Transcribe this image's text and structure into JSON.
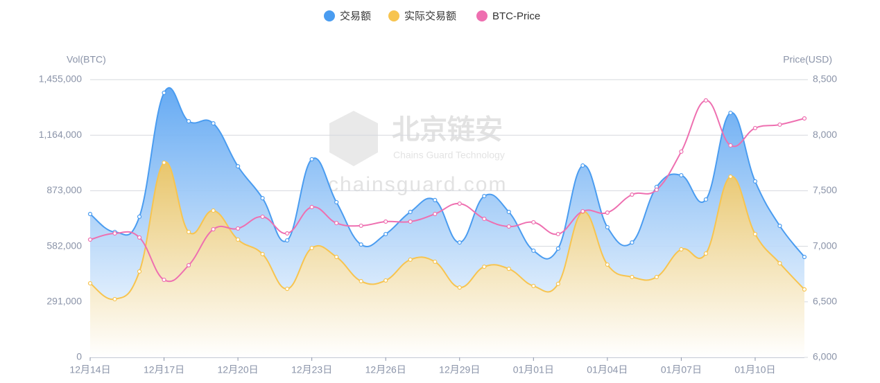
{
  "chart_data": {
    "type": "line",
    "categories": [
      "12月14日",
      null,
      null,
      "12月17日",
      null,
      null,
      "12月20日",
      null,
      null,
      "12月23日",
      null,
      null,
      "12月26日",
      null,
      null,
      "12月29日",
      null,
      null,
      "01月01日",
      null,
      null,
      "01月04日",
      null,
      null,
      "01月07日",
      null,
      null,
      "01月10日",
      null,
      null
    ],
    "series": [
      {
        "name": "交易额",
        "color": "#4a9cf0",
        "values": [
          751000,
          657000,
          737000,
          1386000,
          1237000,
          1226000,
          1001000,
          834000,
          613000,
          1038000,
          813000,
          591000,
          646000,
          762000,
          824000,
          602000,
          845000,
          762000,
          559000,
          570000,
          1005000,
          682000,
          602000,
          893000,
          954000,
          827000,
          1281000,
          922000,
          689000,
          526000
        ]
      },
      {
        "name": "实际交易额",
        "color": "#f7c44f",
        "values": [
          388000,
          305000,
          450000,
          1020000,
          657000,
          769000,
          617000,
          541000,
          359000,
          573000,
          526000,
          399000,
          403000,
          512000,
          501000,
          366000,
          475000,
          464000,
          374000,
          385000,
          762000,
          486000,
          421000,
          421000,
          566000,
          544000,
          947000,
          646000,
          493000,
          356000
        ]
      },
      {
        "name": "BTC-Price",
        "color": "#ee6fb0",
        "axis": "y2",
        "values": [
          7060,
          7116,
          7079,
          6698,
          6829,
          7153,
          7160,
          7266,
          7116,
          7353,
          7209,
          7185,
          7222,
          7222,
          7291,
          7384,
          7247,
          7178,
          7216,
          7110,
          7315,
          7303,
          7465,
          7509,
          7852,
          8313,
          7908,
          8064,
          8095,
          8151
        ]
      }
    ],
    "ylabel": "Vol(BTC)",
    "y2label": "Price(USD)",
    "ylim": [
      0,
      1455000
    ],
    "yticks": [
      0,
      {
        "value": 291000,
        "label": "291,000"
      },
      {
        "value": 582000,
        "label": "582,000"
      },
      {
        "value": 873000,
        "label": "873,000"
      },
      {
        "value": 1164000,
        "label": "1,164,000"
      },
      {
        "value": 1455000,
        "label": "1,455,000"
      }
    ],
    "y2lim": [
      6000,
      8500
    ],
    "y2ticks": [
      {
        "value": 6000,
        "label": "6,000"
      },
      {
        "value": 6500,
        "label": "6,500"
      },
      {
        "value": 7000,
        "label": "7,000"
      },
      {
        "value": 7500,
        "label": "7,500"
      },
      {
        "value": 8000,
        "label": "8,000"
      },
      {
        "value": 8500,
        "label": "8,500"
      }
    ],
    "grid": true,
    "legend": "top",
    "watermark": {
      "name": "北京链安",
      "subtitle": "Chains Guard Technology",
      "url": "chainsguard.com"
    }
  }
}
